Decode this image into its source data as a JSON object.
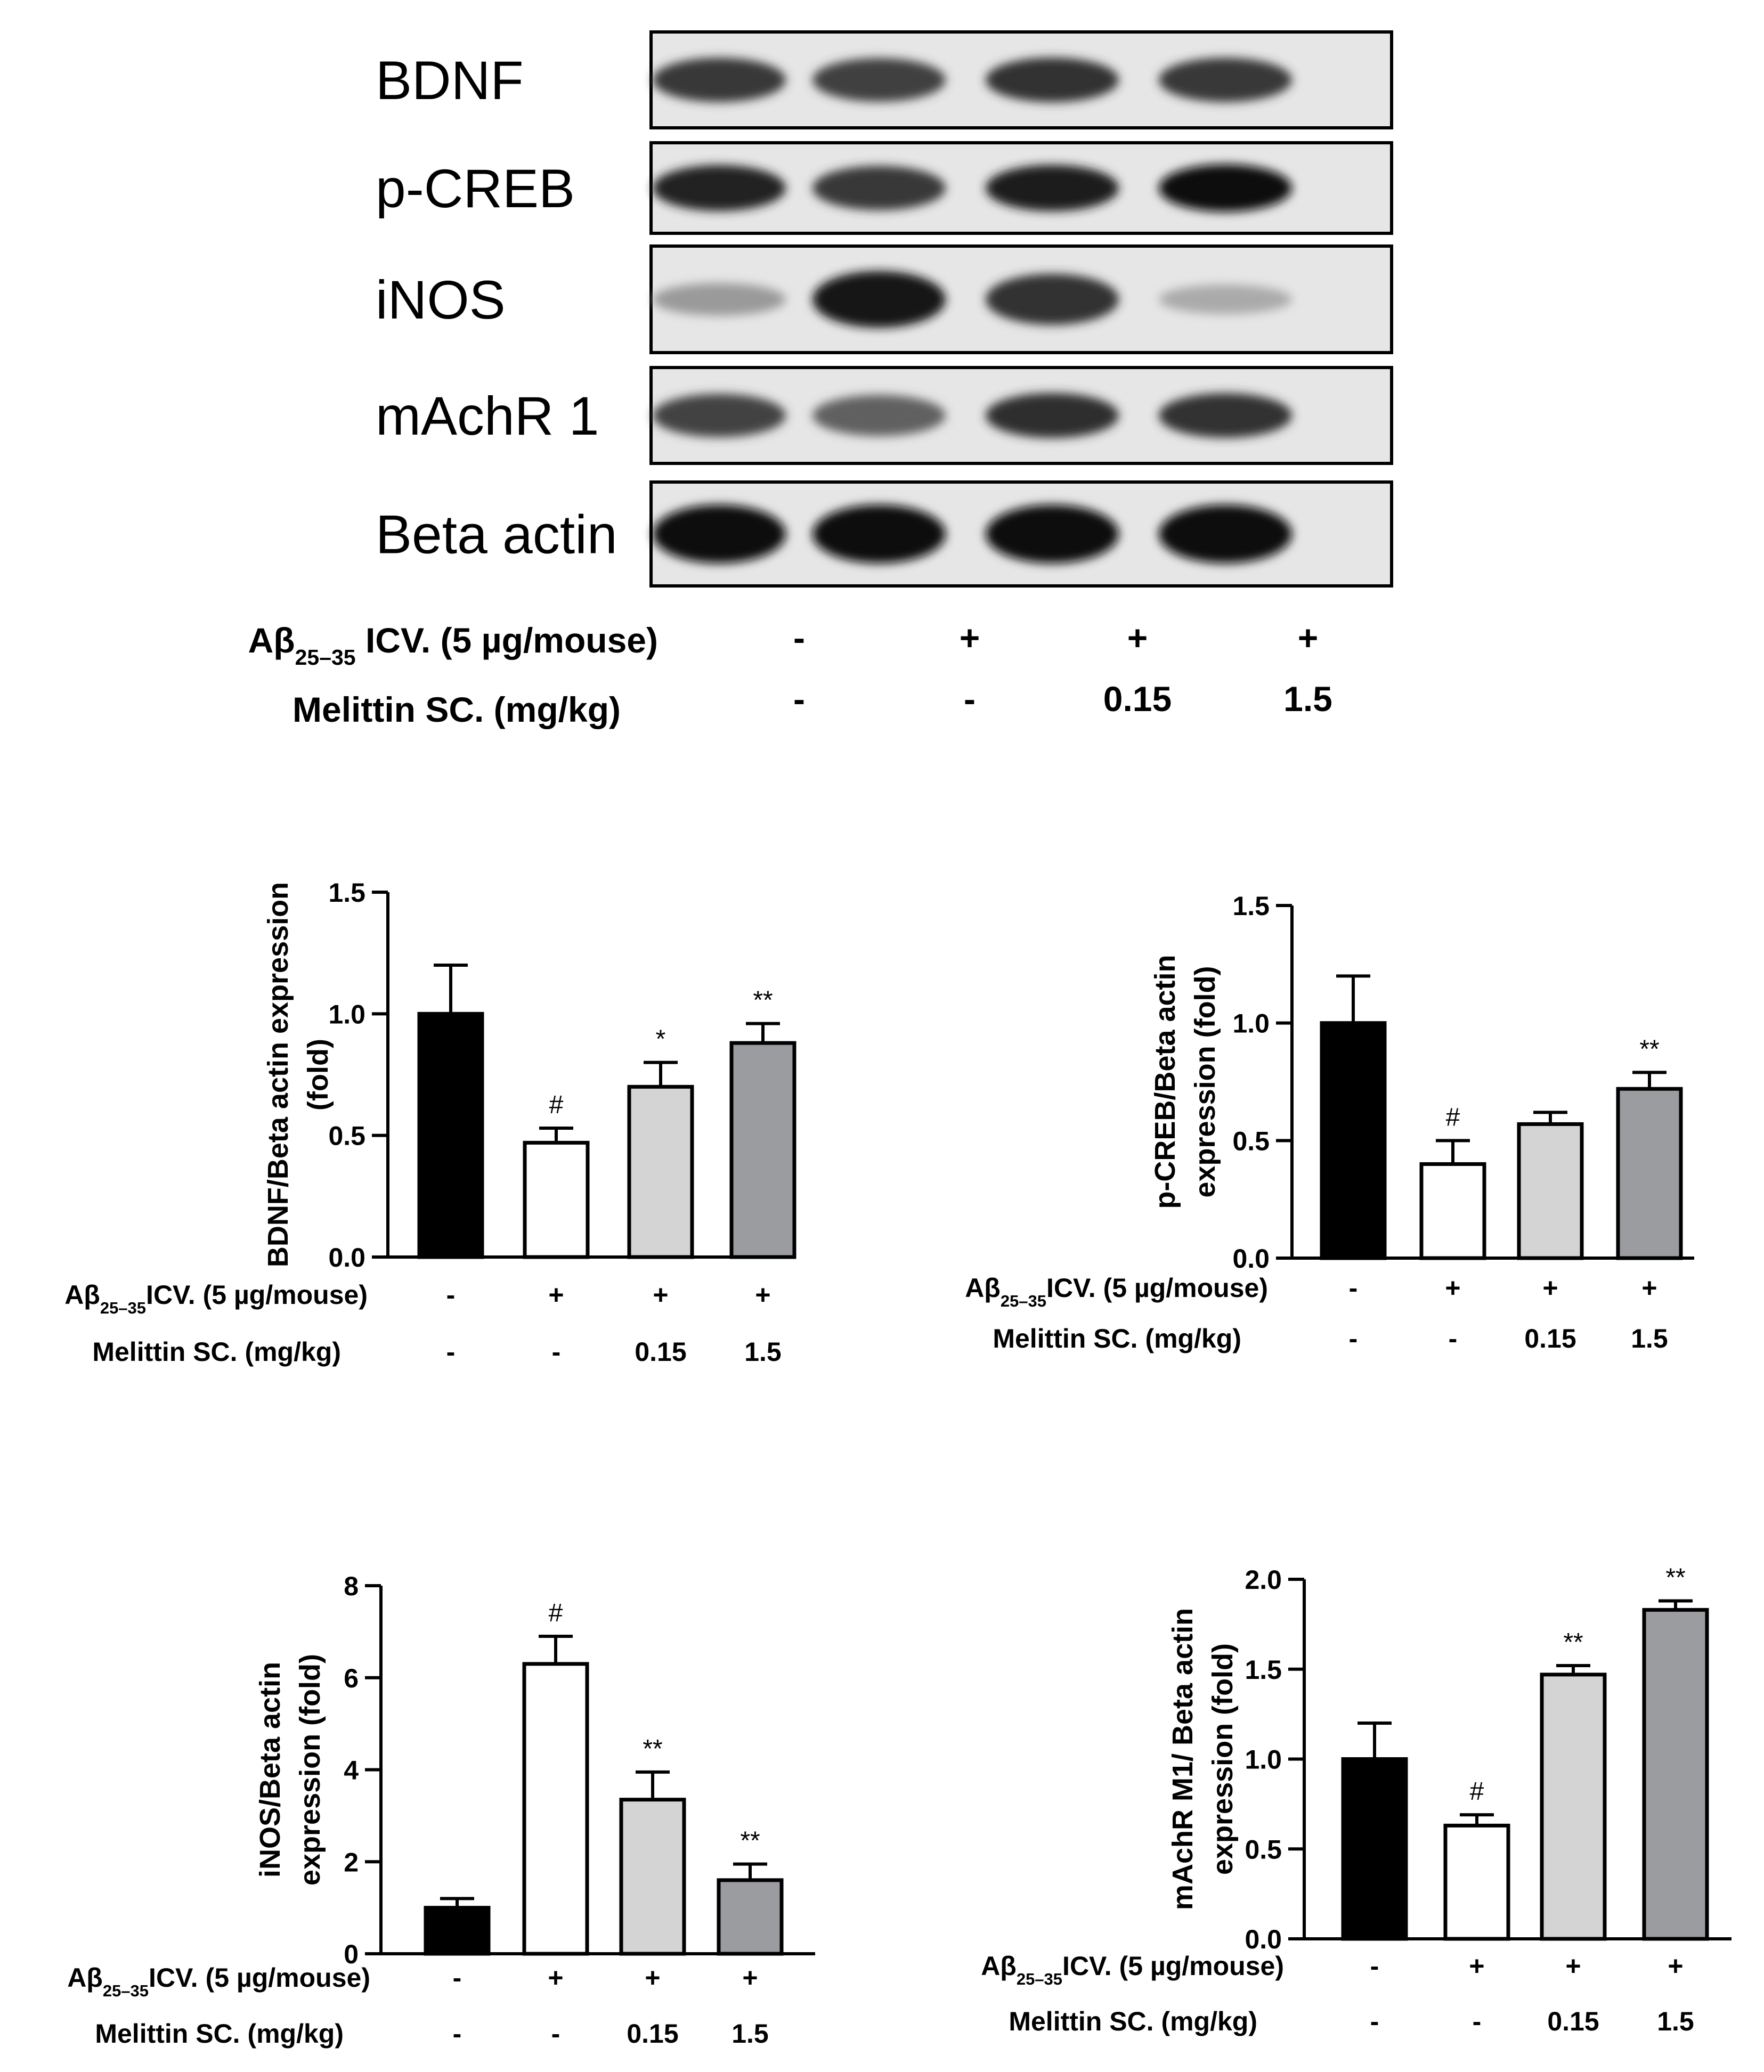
{
  "blot": {
    "proteins": [
      "BDNF",
      "p-CREB",
      "iNOS",
      "mAchR  1",
      "Beta actin"
    ],
    "abeta_label": {
      "pre": "Aβ",
      "sub": "25–35",
      "post": " ICV. (5 µg/mouse)"
    },
    "abeta_values": [
      "-",
      "+",
      "+",
      "+"
    ],
    "melittin_label": "Melittin SC. (mg/kg)",
    "melittin_values": [
      "-",
      "-",
      "0.15",
      "1.5"
    ],
    "band_intensity": [
      [
        0.78,
        0.74,
        0.8,
        0.78
      ],
      [
        0.88,
        0.78,
        0.9,
        0.98
      ],
      [
        0.3,
        0.95,
        0.8,
        0.22
      ],
      [
        0.72,
        0.58,
        0.82,
        0.8
      ],
      [
        1.0,
        1.0,
        1.0,
        1.0
      ]
    ]
  },
  "colors": {
    "bar_fills": [
      "#000000",
      "#ffffff",
      "#d4d4d4",
      "#9b9ca0"
    ],
    "ink": "#000000"
  },
  "chart_data": [
    {
      "type": "bar",
      "ylabel_lines": [
        "BDNF/Beta actin expression",
        "(fold)"
      ],
      "ylim": [
        0,
        1.5
      ],
      "yticks": [
        "0.0",
        "0.5",
        "1.0",
        "1.5"
      ],
      "values": [
        1.0,
        0.47,
        0.7,
        0.88
      ],
      "errors": [
        0.2,
        0.06,
        0.1,
        0.08
      ],
      "annotations": [
        "",
        "#",
        "*",
        "**"
      ],
      "abeta_label": {
        "pre": "Aβ",
        "sub": "25–35",
        "post": "ICV. (5 µg/mouse)"
      },
      "abeta_values": [
        "-",
        "+",
        "+",
        "+"
      ],
      "melittin_label": "Melittin SC. (mg/kg)",
      "melittin_values": [
        "-",
        "-",
        "0.15",
        "1.5"
      ]
    },
    {
      "type": "bar",
      "ylabel_lines": [
        "p-CREB/Beta actin",
        "expression (fold)"
      ],
      "ylim": [
        0,
        1.5
      ],
      "yticks": [
        "0.0",
        "0.5",
        "1.0",
        "1.5"
      ],
      "values": [
        1.0,
        0.4,
        0.57,
        0.72
      ],
      "errors": [
        0.2,
        0.1,
        0.05,
        0.07
      ],
      "annotations": [
        "",
        "#",
        "",
        "**"
      ],
      "abeta_label": {
        "pre": "Aβ",
        "sub": "25–35",
        "post": "ICV. (5 µg/mouse)"
      },
      "abeta_values": [
        "-",
        "+",
        "+",
        "+"
      ],
      "melittin_label": "Melittin SC. (mg/kg)",
      "melittin_values": [
        "-",
        "-",
        "0.15",
        "1.5"
      ]
    },
    {
      "type": "bar",
      "ylabel_lines": [
        "iNOS/Beta actin",
        "expression (fold)"
      ],
      "ylim": [
        0,
        8
      ],
      "yticks": [
        "0",
        "2",
        "4",
        "6",
        "8"
      ],
      "values": [
        1.0,
        6.3,
        3.35,
        1.6
      ],
      "errors": [
        0.2,
        0.6,
        0.6,
        0.35
      ],
      "annotations": [
        "",
        "#",
        "**",
        "**"
      ],
      "abeta_label": {
        "pre": "Aβ",
        "sub": "25–35",
        "post": "ICV. (5 µg/mouse)"
      },
      "abeta_values": [
        "-",
        "+",
        "+",
        "+"
      ],
      "melittin_label": "Melittin SC. (mg/kg)",
      "melittin_values": [
        "-",
        "-",
        "0.15",
        "1.5"
      ]
    },
    {
      "type": "bar",
      "ylabel_lines": [
        "mAchR M1/ Beta actin",
        "expression (fold)"
      ],
      "ylim": [
        0,
        2.0
      ],
      "yticks": [
        "0.0",
        "0.5",
        "1.0",
        "1.5",
        "2.0"
      ],
      "values": [
        1.0,
        0.63,
        1.47,
        1.83
      ],
      "errors": [
        0.2,
        0.06,
        0.05,
        0.05
      ],
      "annotations": [
        "",
        "#",
        "**",
        "**"
      ],
      "abeta_label": {
        "pre": "Aβ",
        "sub": "25–35",
        "post": "ICV. (5 µg/mouse)"
      },
      "abeta_values": [
        "-",
        "+",
        "+",
        "+"
      ],
      "melittin_label": "Melittin SC. (mg/kg)",
      "melittin_values": [
        "-",
        "-",
        "0.15",
        "1.5"
      ]
    }
  ]
}
